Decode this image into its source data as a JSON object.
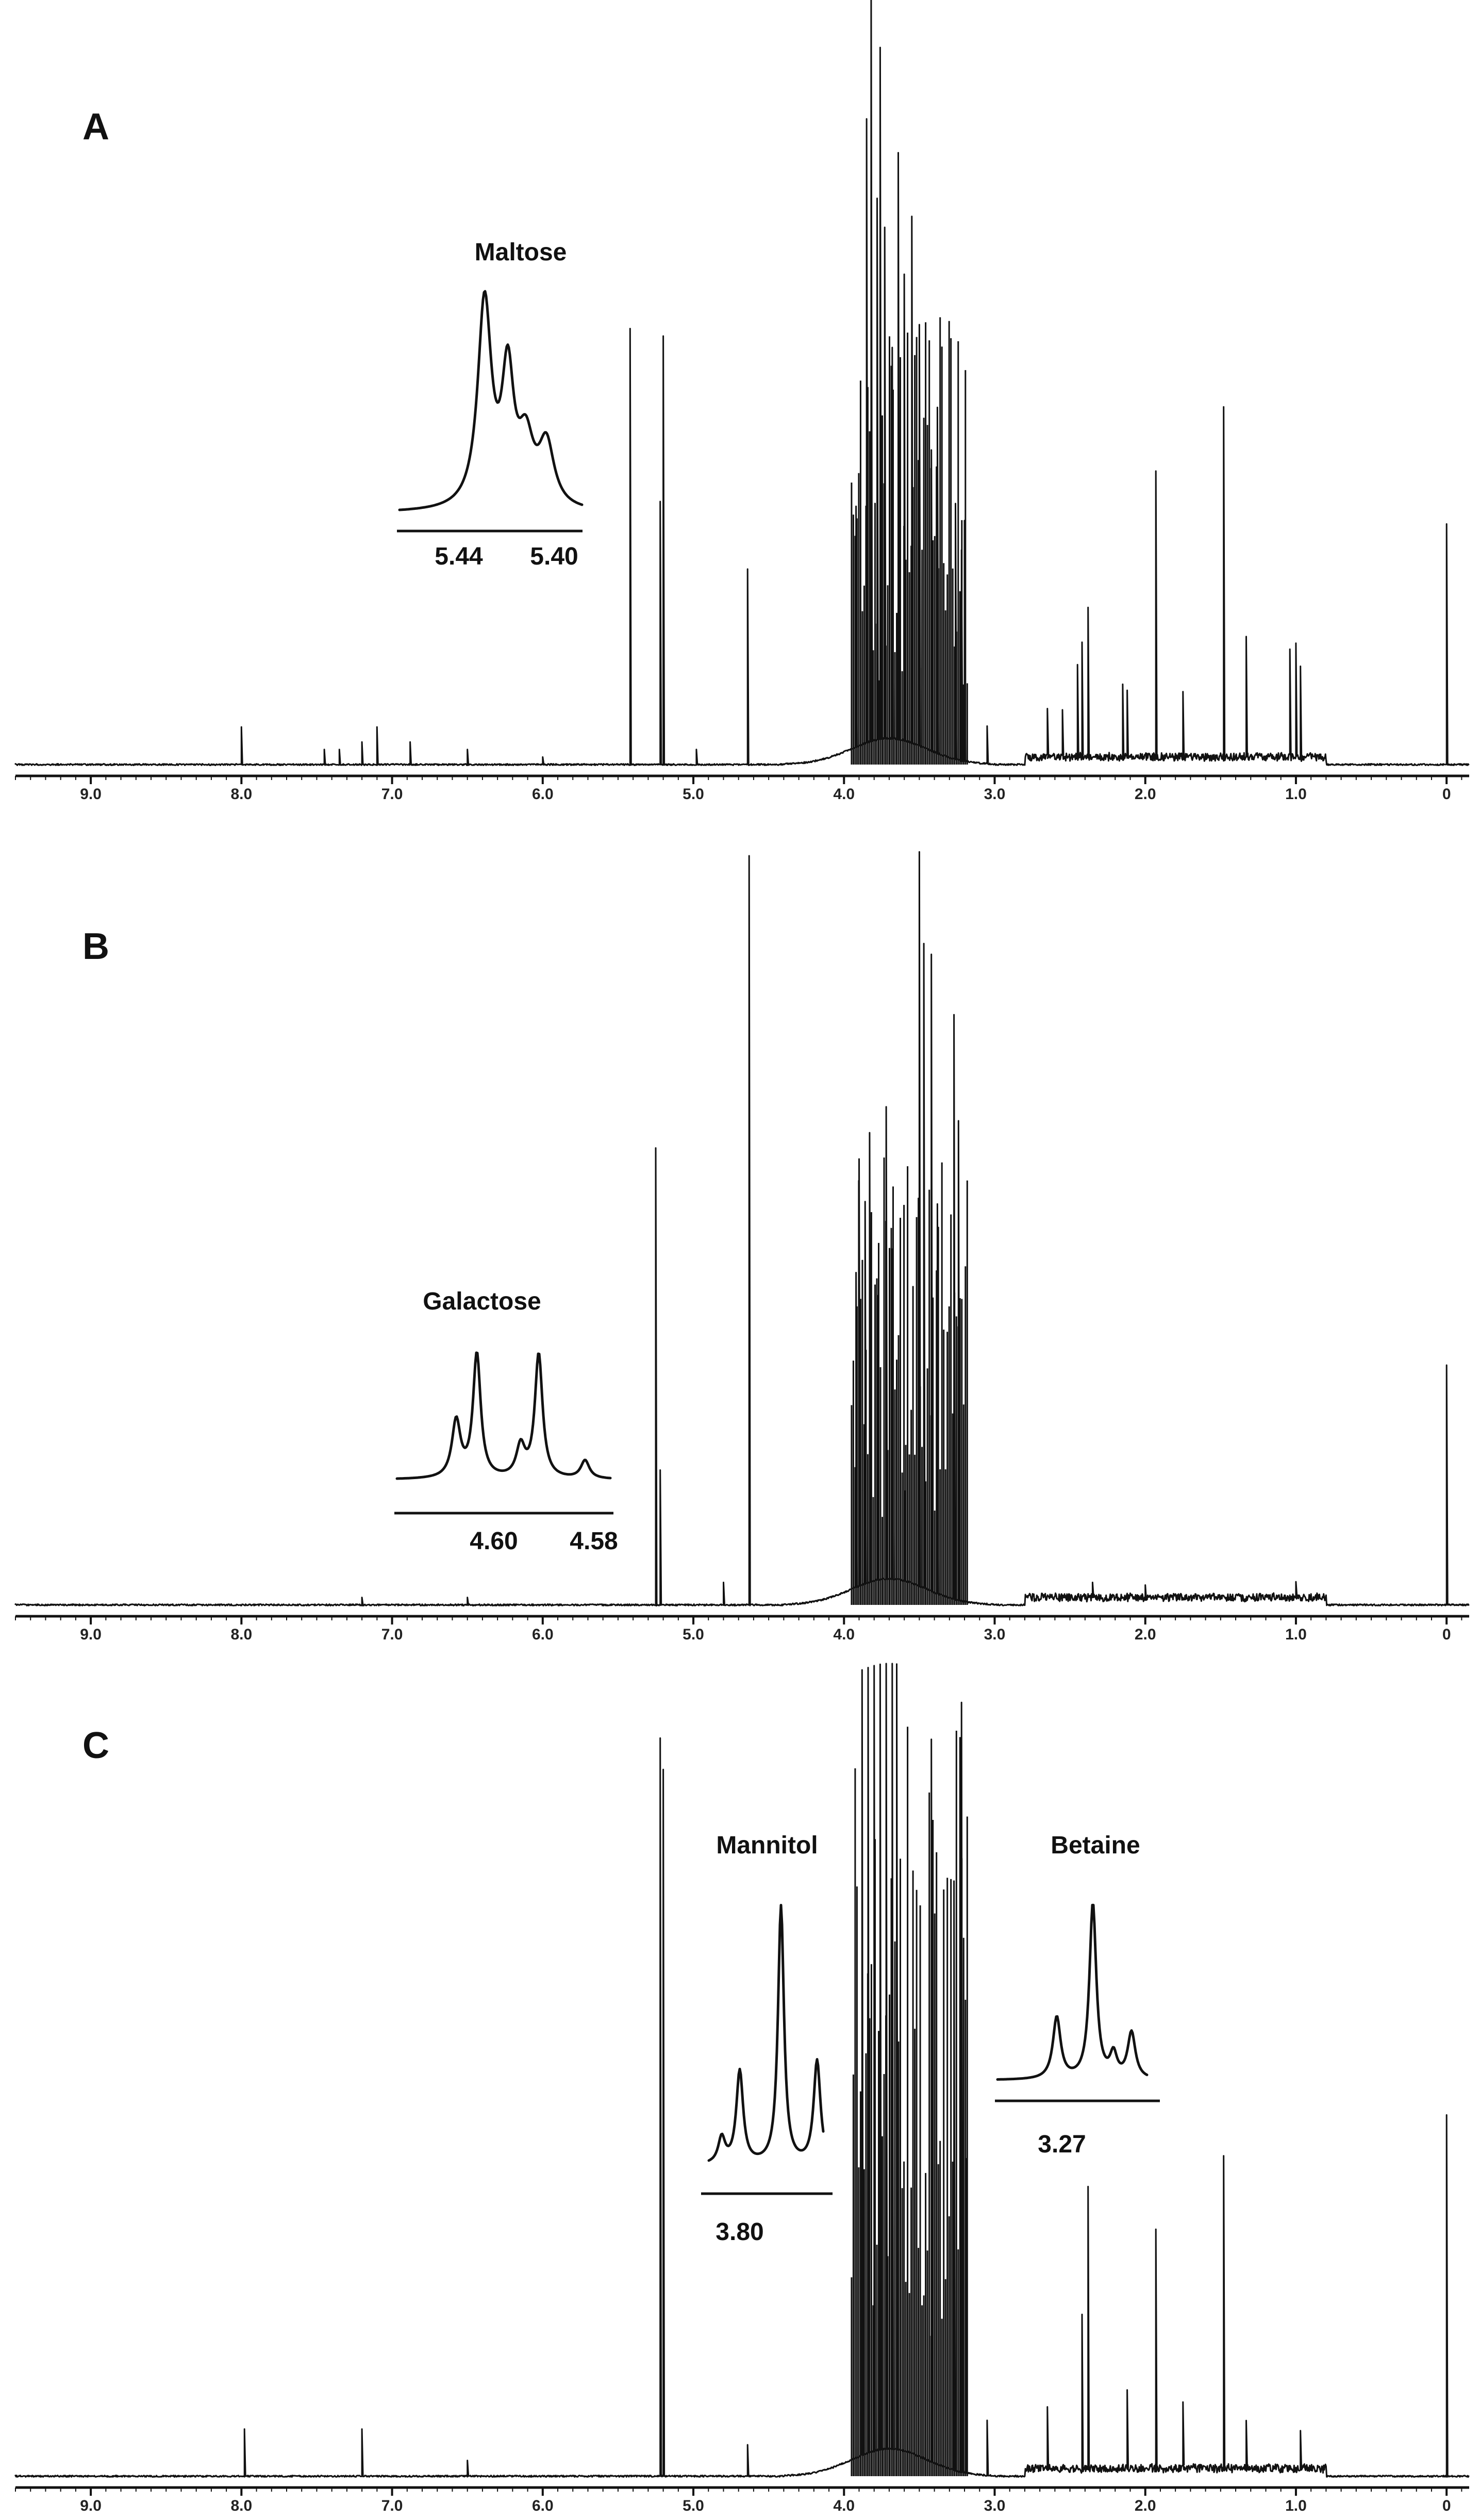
{
  "chart_data": [
    {
      "panel": "A",
      "type": "line",
      "title": "",
      "xlabel": "",
      "ylabel": "",
      "xlim": [
        9.5,
        -0.15
      ],
      "x_reversed": true,
      "x_ticks": [
        "9.0",
        "8.0",
        "7.0",
        "6.0",
        "5.0",
        "4.0",
        "3.0",
        "2.0",
        "1.0",
        "0"
      ],
      "x_tick_values": [
        9.0,
        8.0,
        7.0,
        6.0,
        5.0,
        4.0,
        3.0,
        2.0,
        1.0,
        0.0
      ],
      "grid": false,
      "peaks": [
        {
          "x": 8.0,
          "y": 0.05
        },
        {
          "x": 7.45,
          "y": 0.02
        },
        {
          "x": 7.35,
          "y": 0.02
        },
        {
          "x": 7.2,
          "y": 0.03
        },
        {
          "x": 7.1,
          "y": 0.05
        },
        {
          "x": 6.88,
          "y": 0.03
        },
        {
          "x": 6.5,
          "y": 0.02
        },
        {
          "x": 6.0,
          "y": 0.01
        },
        {
          "x": 5.42,
          "y": 0.58
        },
        {
          "x": 5.22,
          "y": 0.35
        },
        {
          "x": 5.2,
          "y": 0.57
        },
        {
          "x": 4.98,
          "y": 0.02
        },
        {
          "x": 4.64,
          "y": 0.26
        },
        {
          "x": 3.92,
          "y": 0.32
        },
        {
          "x": 3.85,
          "y": 0.83
        },
        {
          "x": 3.82,
          "y": 1.0
        },
        {
          "x": 3.78,
          "y": 0.72
        },
        {
          "x": 3.76,
          "y": 0.92
        },
        {
          "x": 3.73,
          "y": 0.68
        },
        {
          "x": 3.68,
          "y": 0.52
        },
        {
          "x": 3.64,
          "y": 0.78
        },
        {
          "x": 3.6,
          "y": 0.62
        },
        {
          "x": 3.55,
          "y": 0.7
        },
        {
          "x": 3.5,
          "y": 0.56
        },
        {
          "x": 3.42,
          "y": 0.4
        },
        {
          "x": 3.38,
          "y": 0.46
        },
        {
          "x": 3.26,
          "y": 0.34
        },
        {
          "x": 3.22,
          "y": 0.28
        },
        {
          "x": 3.2,
          "y": 0.32
        },
        {
          "x": 3.05,
          "y": 0.05
        },
        {
          "x": 2.65,
          "y": 0.06
        },
        {
          "x": 2.55,
          "y": 0.06
        },
        {
          "x": 2.45,
          "y": 0.12
        },
        {
          "x": 2.42,
          "y": 0.15
        },
        {
          "x": 2.38,
          "y": 0.2
        },
        {
          "x": 2.15,
          "y": 0.1
        },
        {
          "x": 2.12,
          "y": 0.09
        },
        {
          "x": 1.93,
          "y": 0.38
        },
        {
          "x": 1.75,
          "y": 0.09
        },
        {
          "x": 1.48,
          "y": 0.47
        },
        {
          "x": 1.33,
          "y": 0.16
        },
        {
          "x": 1.04,
          "y": 0.14
        },
        {
          "x": 1.0,
          "y": 0.15
        },
        {
          "x": 0.97,
          "y": 0.12
        },
        {
          "x": 0.0,
          "y": 0.32
        }
      ],
      "inset": {
        "label": "Maltose",
        "ticks": [
          "5.44",
          "5.40"
        ]
      }
    },
    {
      "panel": "B",
      "type": "line",
      "title": "",
      "xlabel": "",
      "ylabel": "",
      "xlim": [
        9.5,
        -0.15
      ],
      "x_reversed": true,
      "x_ticks": [
        "9.0",
        "8.0",
        "7.0",
        "6.0",
        "5.0",
        "4.0",
        "3.0",
        "2.0",
        "1.0",
        "0"
      ],
      "x_tick_values": [
        9.0,
        8.0,
        7.0,
        6.0,
        5.0,
        4.0,
        3.0,
        2.0,
        1.0,
        0.0
      ],
      "grid": false,
      "peaks": [
        {
          "x": 7.2,
          "y": 0.01
        },
        {
          "x": 6.5,
          "y": 0.01
        },
        {
          "x": 5.25,
          "y": 0.61
        },
        {
          "x": 5.22,
          "y": 0.18
        },
        {
          "x": 4.8,
          "y": 0.03
        },
        {
          "x": 4.63,
          "y": 1.0
        },
        {
          "x": 3.92,
          "y": 0.42
        },
        {
          "x": 3.9,
          "y": 0.57
        },
        {
          "x": 3.86,
          "y": 0.51
        },
        {
          "x": 3.83,
          "y": 0.6
        },
        {
          "x": 3.78,
          "y": 0.38
        },
        {
          "x": 3.72,
          "y": 0.63
        },
        {
          "x": 3.68,
          "y": 0.44
        },
        {
          "x": 3.6,
          "y": 0.12
        },
        {
          "x": 3.5,
          "y": 0.98
        },
        {
          "x": 3.47,
          "y": 0.86
        },
        {
          "x": 3.42,
          "y": 0.85
        },
        {
          "x": 3.38,
          "y": 0.52
        },
        {
          "x": 3.27,
          "y": 0.78
        },
        {
          "x": 3.24,
          "y": 0.64
        },
        {
          "x": 2.35,
          "y": 0.02
        },
        {
          "x": 2.0,
          "y": 0.02
        },
        {
          "x": 1.0,
          "y": 0.02
        },
        {
          "x": 0.0,
          "y": 0.32
        }
      ],
      "inset": {
        "label": "Galactose",
        "ticks": [
          "4.60",
          "4.58"
        ]
      }
    },
    {
      "panel": "C",
      "type": "line",
      "title": "",
      "xlabel": "",
      "ylabel": "",
      "xlim": [
        9.5,
        -0.15
      ],
      "x_reversed": true,
      "x_ticks": [
        "9.0",
        "8.0",
        "7.0",
        "6.0",
        "5.0",
        "4.0",
        "3.0",
        "2.0",
        "1.0",
        "0"
      ],
      "x_tick_values": [
        9.0,
        8.0,
        7.0,
        6.0,
        5.0,
        4.0,
        3.0,
        2.0,
        1.0,
        0.0
      ],
      "grid": false,
      "peaks": [
        {
          "x": 7.98,
          "y": 0.06
        },
        {
          "x": 7.2,
          "y": 0.06
        },
        {
          "x": 6.5,
          "y": 0.02
        },
        {
          "x": 5.22,
          "y": 0.94
        },
        {
          "x": 5.2,
          "y": 0.9
        },
        {
          "x": 4.64,
          "y": 0.04
        },
        {
          "x": 3.88,
          "y": 1.0
        },
        {
          "x": 3.84,
          "y": 1.0
        },
        {
          "x": 3.8,
          "y": 1.0
        },
        {
          "x": 3.76,
          "y": 1.0
        },
        {
          "x": 3.72,
          "y": 1.0
        },
        {
          "x": 3.68,
          "y": 1.0
        },
        {
          "x": 3.65,
          "y": 1.0
        },
        {
          "x": 3.42,
          "y": 0.92
        },
        {
          "x": 3.27,
          "y": 0.75
        },
        {
          "x": 3.22,
          "y": 0.98
        },
        {
          "x": 3.19,
          "y": 0.4
        },
        {
          "x": 3.05,
          "y": 0.07
        },
        {
          "x": 2.65,
          "y": 0.08
        },
        {
          "x": 2.42,
          "y": 0.2
        },
        {
          "x": 2.38,
          "y": 0.36
        },
        {
          "x": 2.12,
          "y": 0.1
        },
        {
          "x": 1.93,
          "y": 0.3
        },
        {
          "x": 1.75,
          "y": 0.08
        },
        {
          "x": 1.48,
          "y": 0.4
        },
        {
          "x": 1.33,
          "y": 0.06
        },
        {
          "x": 0.97,
          "y": 0.05
        },
        {
          "x": 0.0,
          "y": 0.46
        }
      ],
      "insets": [
        {
          "label": "Mannitol",
          "ticks": [
            "3.80"
          ]
        },
        {
          "label": "Betaine",
          "ticks": [
            "3.27"
          ]
        }
      ]
    }
  ]
}
